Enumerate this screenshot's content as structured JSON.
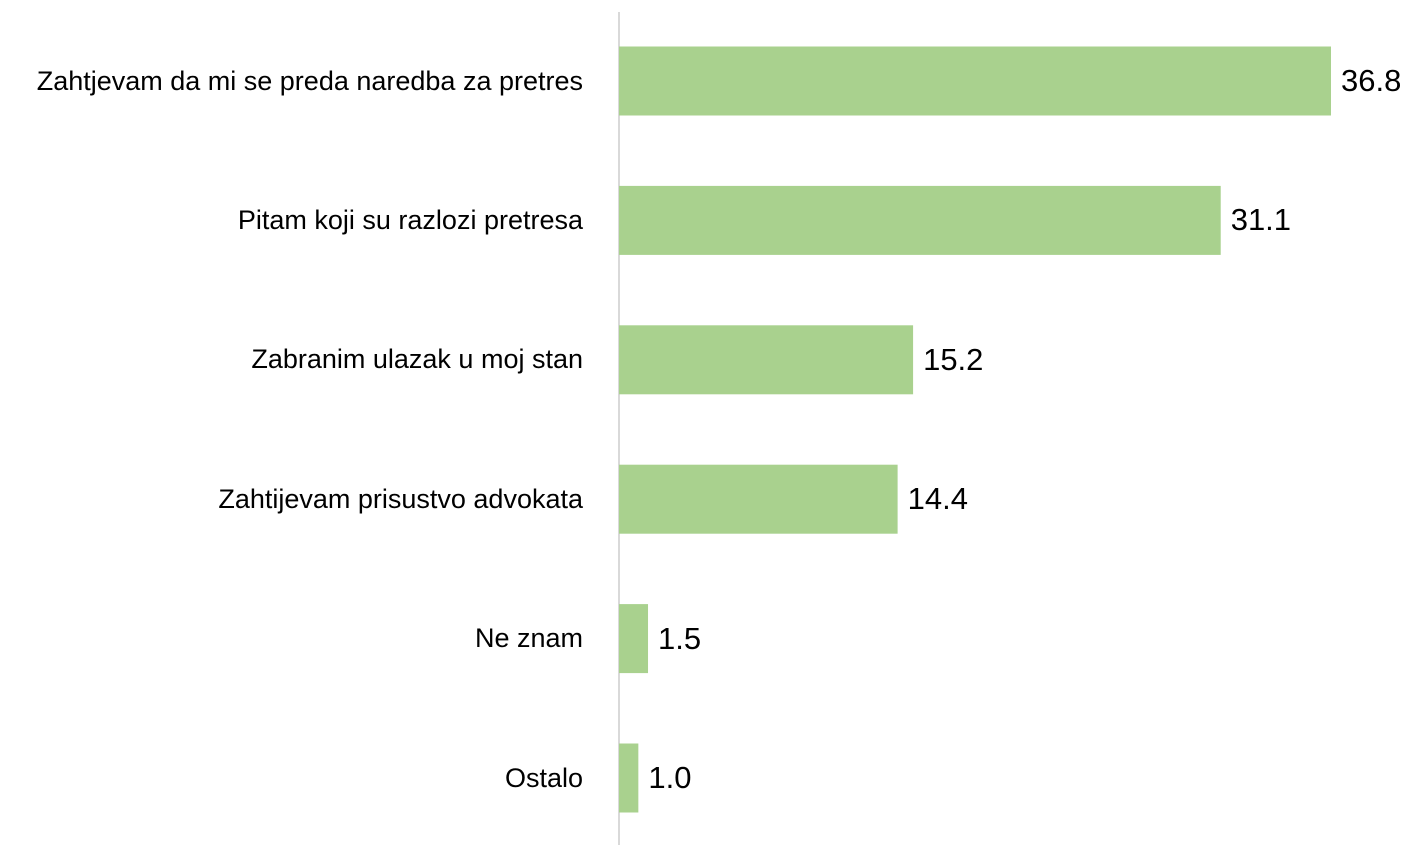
{
  "chart_data": {
    "type": "bar",
    "orientation": "horizontal",
    "categories": [
      "Zahtjevam da mi se preda naredba za pretres",
      "Pitam koji su razlozi pretresa",
      "Zabranim ulazak u moj stan",
      "Zahtijevam prisustvo advokata",
      "Ne znam",
      "Ostalo"
    ],
    "values": [
      36.8,
      31.1,
      15.2,
      14.4,
      1.5,
      1.0
    ],
    "value_labels": [
      "36.8",
      "31.1",
      "15.2",
      "14.4",
      "1.5",
      "1.0"
    ],
    "color": "#a9d18e"
  }
}
